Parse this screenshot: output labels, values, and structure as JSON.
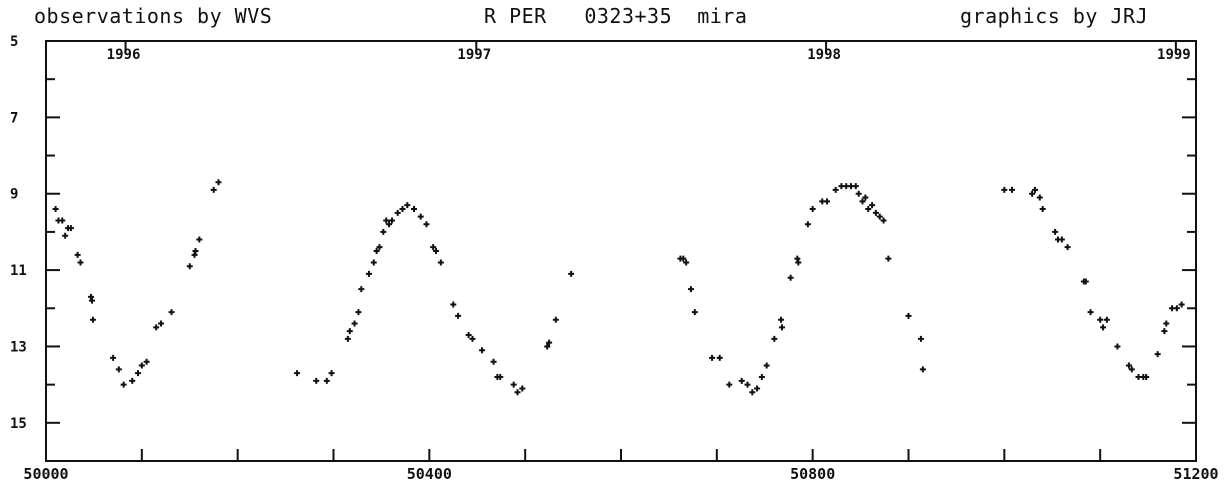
{
  "header": {
    "observer": "observations by WVS",
    "star": "R PER   0323+35  mira",
    "credit": "graphics by JRJ"
  },
  "chart_data": {
    "type": "scatter",
    "title": "R PER   0323+35  mira",
    "xlabel": "",
    "ylabel": "",
    "xlim": [
      50000,
      51200
    ],
    "ylim": [
      5,
      16
    ],
    "y_inverted": true,
    "grid": false,
    "x_ticks": [
      "50000",
      "50400",
      "50800",
      "51200"
    ],
    "y_ticks": [
      "5",
      "7",
      "9",
      "11",
      "13",
      "15"
    ],
    "year_labels": [
      {
        "label": "1996",
        "x": 50083
      },
      {
        "label": "1997",
        "x": 50449
      },
      {
        "label": "1998",
        "x": 50814
      },
      {
        "label": "1999",
        "x": 51179
      }
    ],
    "series": [
      {
        "points": [
          [
            50010,
            9.4
          ],
          [
            50013,
            9.7
          ],
          [
            50017,
            9.7
          ],
          [
            50020,
            10.1
          ],
          [
            50023,
            9.9
          ],
          [
            50026,
            9.9
          ],
          [
            50033,
            10.6
          ],
          [
            50036,
            10.8
          ],
          [
            50047,
            11.7
          ],
          [
            50048,
            11.8
          ],
          [
            50049,
            12.3
          ],
          [
            50070,
            13.3
          ],
          [
            50076,
            13.6
          ],
          [
            50081,
            14.0
          ],
          [
            50090,
            13.9
          ],
          [
            50096,
            13.7
          ],
          [
            50100,
            13.5
          ],
          [
            50105,
            13.4
          ],
          [
            50115,
            12.5
          ],
          [
            50120,
            12.4
          ],
          [
            50131,
            12.1
          ],
          [
            50150,
            10.9
          ],
          [
            50155,
            10.6
          ],
          [
            50156,
            10.5
          ],
          [
            50160,
            10.2
          ],
          [
            50175,
            8.9
          ],
          [
            50180,
            8.7
          ],
          [
            50262,
            13.7
          ],
          [
            50282,
            13.9
          ],
          [
            50293,
            13.9
          ],
          [
            50298,
            13.7
          ],
          [
            50315,
            12.8
          ],
          [
            50317,
            12.6
          ],
          [
            50322,
            12.4
          ],
          [
            50326,
            12.1
          ],
          [
            50329,
            11.5
          ],
          [
            50337,
            11.1
          ],
          [
            50342,
            10.8
          ],
          [
            50345,
            10.5
          ],
          [
            50348,
            10.4
          ],
          [
            50352,
            10.0
          ],
          [
            50355,
            9.7
          ],
          [
            50358,
            9.8
          ],
          [
            50361,
            9.7
          ],
          [
            50367,
            9.5
          ],
          [
            50372,
            9.4
          ],
          [
            50377,
            9.3
          ],
          [
            50384,
            9.4
          ],
          [
            50391,
            9.6
          ],
          [
            50397,
            9.8
          ],
          [
            50404,
            10.4
          ],
          [
            50407,
            10.5
          ],
          [
            50412,
            10.8
          ],
          [
            50425,
            11.9
          ],
          [
            50430,
            12.2
          ],
          [
            50441,
            12.7
          ],
          [
            50445,
            12.8
          ],
          [
            50455,
            13.1
          ],
          [
            50467,
            13.4
          ],
          [
            50471,
            13.8
          ],
          [
            50474,
            13.8
          ],
          [
            50488,
            14.0
          ],
          [
            50492,
            14.2
          ],
          [
            50497,
            14.1
          ],
          [
            50523,
            13.0
          ],
          [
            50525,
            12.9
          ],
          [
            50532,
            12.3
          ],
          [
            50548,
            11.1
          ],
          [
            50662,
            10.7
          ],
          [
            50665,
            10.7
          ],
          [
            50668,
            10.8
          ],
          [
            50673,
            11.5
          ],
          [
            50677,
            12.1
          ],
          [
            50695,
            13.3
          ],
          [
            50703,
            13.3
          ],
          [
            50713,
            14.0
          ],
          [
            50726,
            13.9
          ],
          [
            50732,
            14.0
          ],
          [
            50737,
            14.2
          ],
          [
            50742,
            14.1
          ],
          [
            50747,
            13.8
          ],
          [
            50752,
            13.5
          ],
          [
            50760,
            12.8
          ],
          [
            50767,
            12.3
          ],
          [
            50768,
            12.5
          ],
          [
            50777,
            11.2
          ],
          [
            50784,
            10.7
          ],
          [
            50785,
            10.8
          ],
          [
            50795,
            9.8
          ],
          [
            50800,
            9.4
          ],
          [
            50810,
            9.2
          ],
          [
            50815,
            9.2
          ],
          [
            50824,
            8.9
          ],
          [
            50830,
            8.8
          ],
          [
            50835,
            8.8
          ],
          [
            50840,
            8.8
          ],
          [
            50845,
            8.8
          ],
          [
            50848,
            9.0
          ],
          [
            50852,
            9.2
          ],
          [
            50855,
            9.1
          ],
          [
            50858,
            9.4
          ],
          [
            50862,
            9.3
          ],
          [
            50866,
            9.5
          ],
          [
            50870,
            9.6
          ],
          [
            50874,
            9.7
          ],
          [
            50879,
            10.7
          ],
          [
            50900,
            12.2
          ],
          [
            50913,
            12.8
          ],
          [
            50915,
            13.6
          ],
          [
            51000,
            8.9
          ],
          [
            51008,
            8.9
          ],
          [
            51029,
            9.0
          ],
          [
            51032,
            8.9
          ],
          [
            51037,
            9.1
          ],
          [
            51040,
            9.4
          ],
          [
            51053,
            10.0
          ],
          [
            51056,
            10.2
          ],
          [
            51060,
            10.2
          ],
          [
            51066,
            10.4
          ],
          [
            51083,
            11.3
          ],
          [
            51085,
            11.3
          ],
          [
            51090,
            12.1
          ],
          [
            51100,
            12.3
          ],
          [
            51103,
            12.5
          ],
          [
            51107,
            12.3
          ],
          [
            51118,
            13.0
          ],
          [
            51130,
            13.5
          ],
          [
            51133,
            13.6
          ],
          [
            51140,
            13.8
          ],
          [
            51145,
            13.8
          ],
          [
            51148,
            13.8
          ],
          [
            51160,
            13.2
          ],
          [
            51167,
            12.6
          ],
          [
            51169,
            12.4
          ],
          [
            51175,
            12.0
          ],
          [
            51180,
            12.0
          ],
          [
            51185,
            11.9
          ]
        ]
      }
    ]
  }
}
